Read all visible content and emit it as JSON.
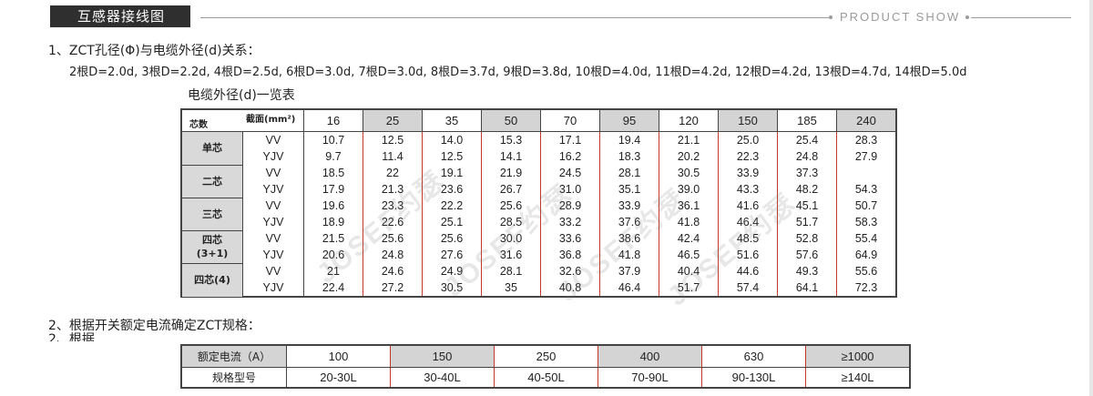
{
  "header": {
    "title": "互感器接线图",
    "product_show": "PRODUCT SHOW"
  },
  "section1": {
    "heading": "1、ZCT孔径(Φ)与电缆外径(d)关系：",
    "relations": "2根D=2.0d,   3根D=2.2d,   4根D=2.5d,   6根D=3.0d,    7根D=3.0d,    8根D=3.7d, 9根D=3.8d,   10根D=4.0d,   11根D=4.2d,   12根D=4.2d, 13根D=4.7d, 14根D=5.0d"
  },
  "cable_table": {
    "title": "电缆外径(d)一览表",
    "corner_core": "芯数",
    "corner_section": "截面(mm²)",
    "sections": [
      "16",
      "25",
      "35",
      "50",
      "70",
      "95",
      "120",
      "150",
      "185",
      "240"
    ],
    "groups": [
      {
        "label": "单芯",
        "rows": [
          {
            "type": "VV",
            "values": [
              "10.7",
              "12.5",
              "14.0",
              "15.3",
              "17.1",
              "19.4",
              "21.1",
              "25.0",
              "25.4",
              "28.3"
            ]
          },
          {
            "type": "YJV",
            "values": [
              "9.7",
              "11.4",
              "12.5",
              "14.1",
              "16.2",
              "18.3",
              "20.2",
              "22.3",
              "24.8",
              "27.9"
            ]
          }
        ]
      },
      {
        "label": "二芯",
        "rows": [
          {
            "type": "VV",
            "values": [
              "18.5",
              "22",
              "19.1",
              "21.9",
              "24.5",
              "28.1",
              "30.5",
              "33.9",
              "37.3",
              ""
            ]
          },
          {
            "type": "YJV",
            "values": [
              "17.9",
              "21.3",
              "23.6",
              "26.7",
              "31.0",
              "35.1",
              "39.0",
              "43.3",
              "48.2",
              "54.3"
            ]
          }
        ]
      },
      {
        "label": "三芯",
        "rows": [
          {
            "type": "VV",
            "values": [
              "19.6",
              "23.3",
              "22.2",
              "25.6",
              "28.9",
              "33.9",
              "36.1",
              "41.6",
              "45.1",
              "50.7"
            ]
          },
          {
            "type": "YJV",
            "values": [
              "18.9",
              "22.6",
              "25.1",
              "28.5",
              "33.2",
              "37.6",
              "41.8",
              "46.4",
              "51.7",
              "58.3"
            ]
          }
        ]
      },
      {
        "label": "四芯\n(3+1)",
        "rows": [
          {
            "type": "VV",
            "values": [
              "21.5",
              "25.6",
              "25.6",
              "30.0",
              "33.6",
              "38.6",
              "42.4",
              "48.5",
              "52.8",
              "55.4"
            ]
          },
          {
            "type": "YJV",
            "values": [
              "20.6",
              "24.8",
              "27.6",
              "31.6",
              "36.8",
              "41.8",
              "46.5",
              "51.6",
              "57.6",
              "64.9"
            ]
          }
        ]
      },
      {
        "label": "四芯(4)",
        "rows": [
          {
            "type": "VV",
            "values": [
              "21",
              "24.6",
              "24.9",
              "28.1",
              "32.6",
              "37.9",
              "40.4",
              "44.6",
              "49.3",
              "55.6"
            ]
          },
          {
            "type": "YJV",
            "values": [
              "22.4",
              "27.2",
              "30.5",
              "35",
              "40.8",
              "46.4",
              "51.7",
              "57.4",
              "64.1",
              "72.3"
            ]
          }
        ]
      }
    ]
  },
  "watermark": "JOSEF约瑟",
  "section2": {
    "heading": "2、根据开关额定电流确定ZCT规格：",
    "heading_dup": "2、根据"
  },
  "zct_table": {
    "row1_label": "额定电流（A）",
    "row2_label": "规格型号",
    "currents": [
      "100",
      "150",
      "250",
      "400",
      "630",
      "≥1000"
    ],
    "models": [
      "20-30L",
      "30-40L",
      "40-50L",
      "70-90L",
      "90-130L",
      "≥140L"
    ]
  }
}
